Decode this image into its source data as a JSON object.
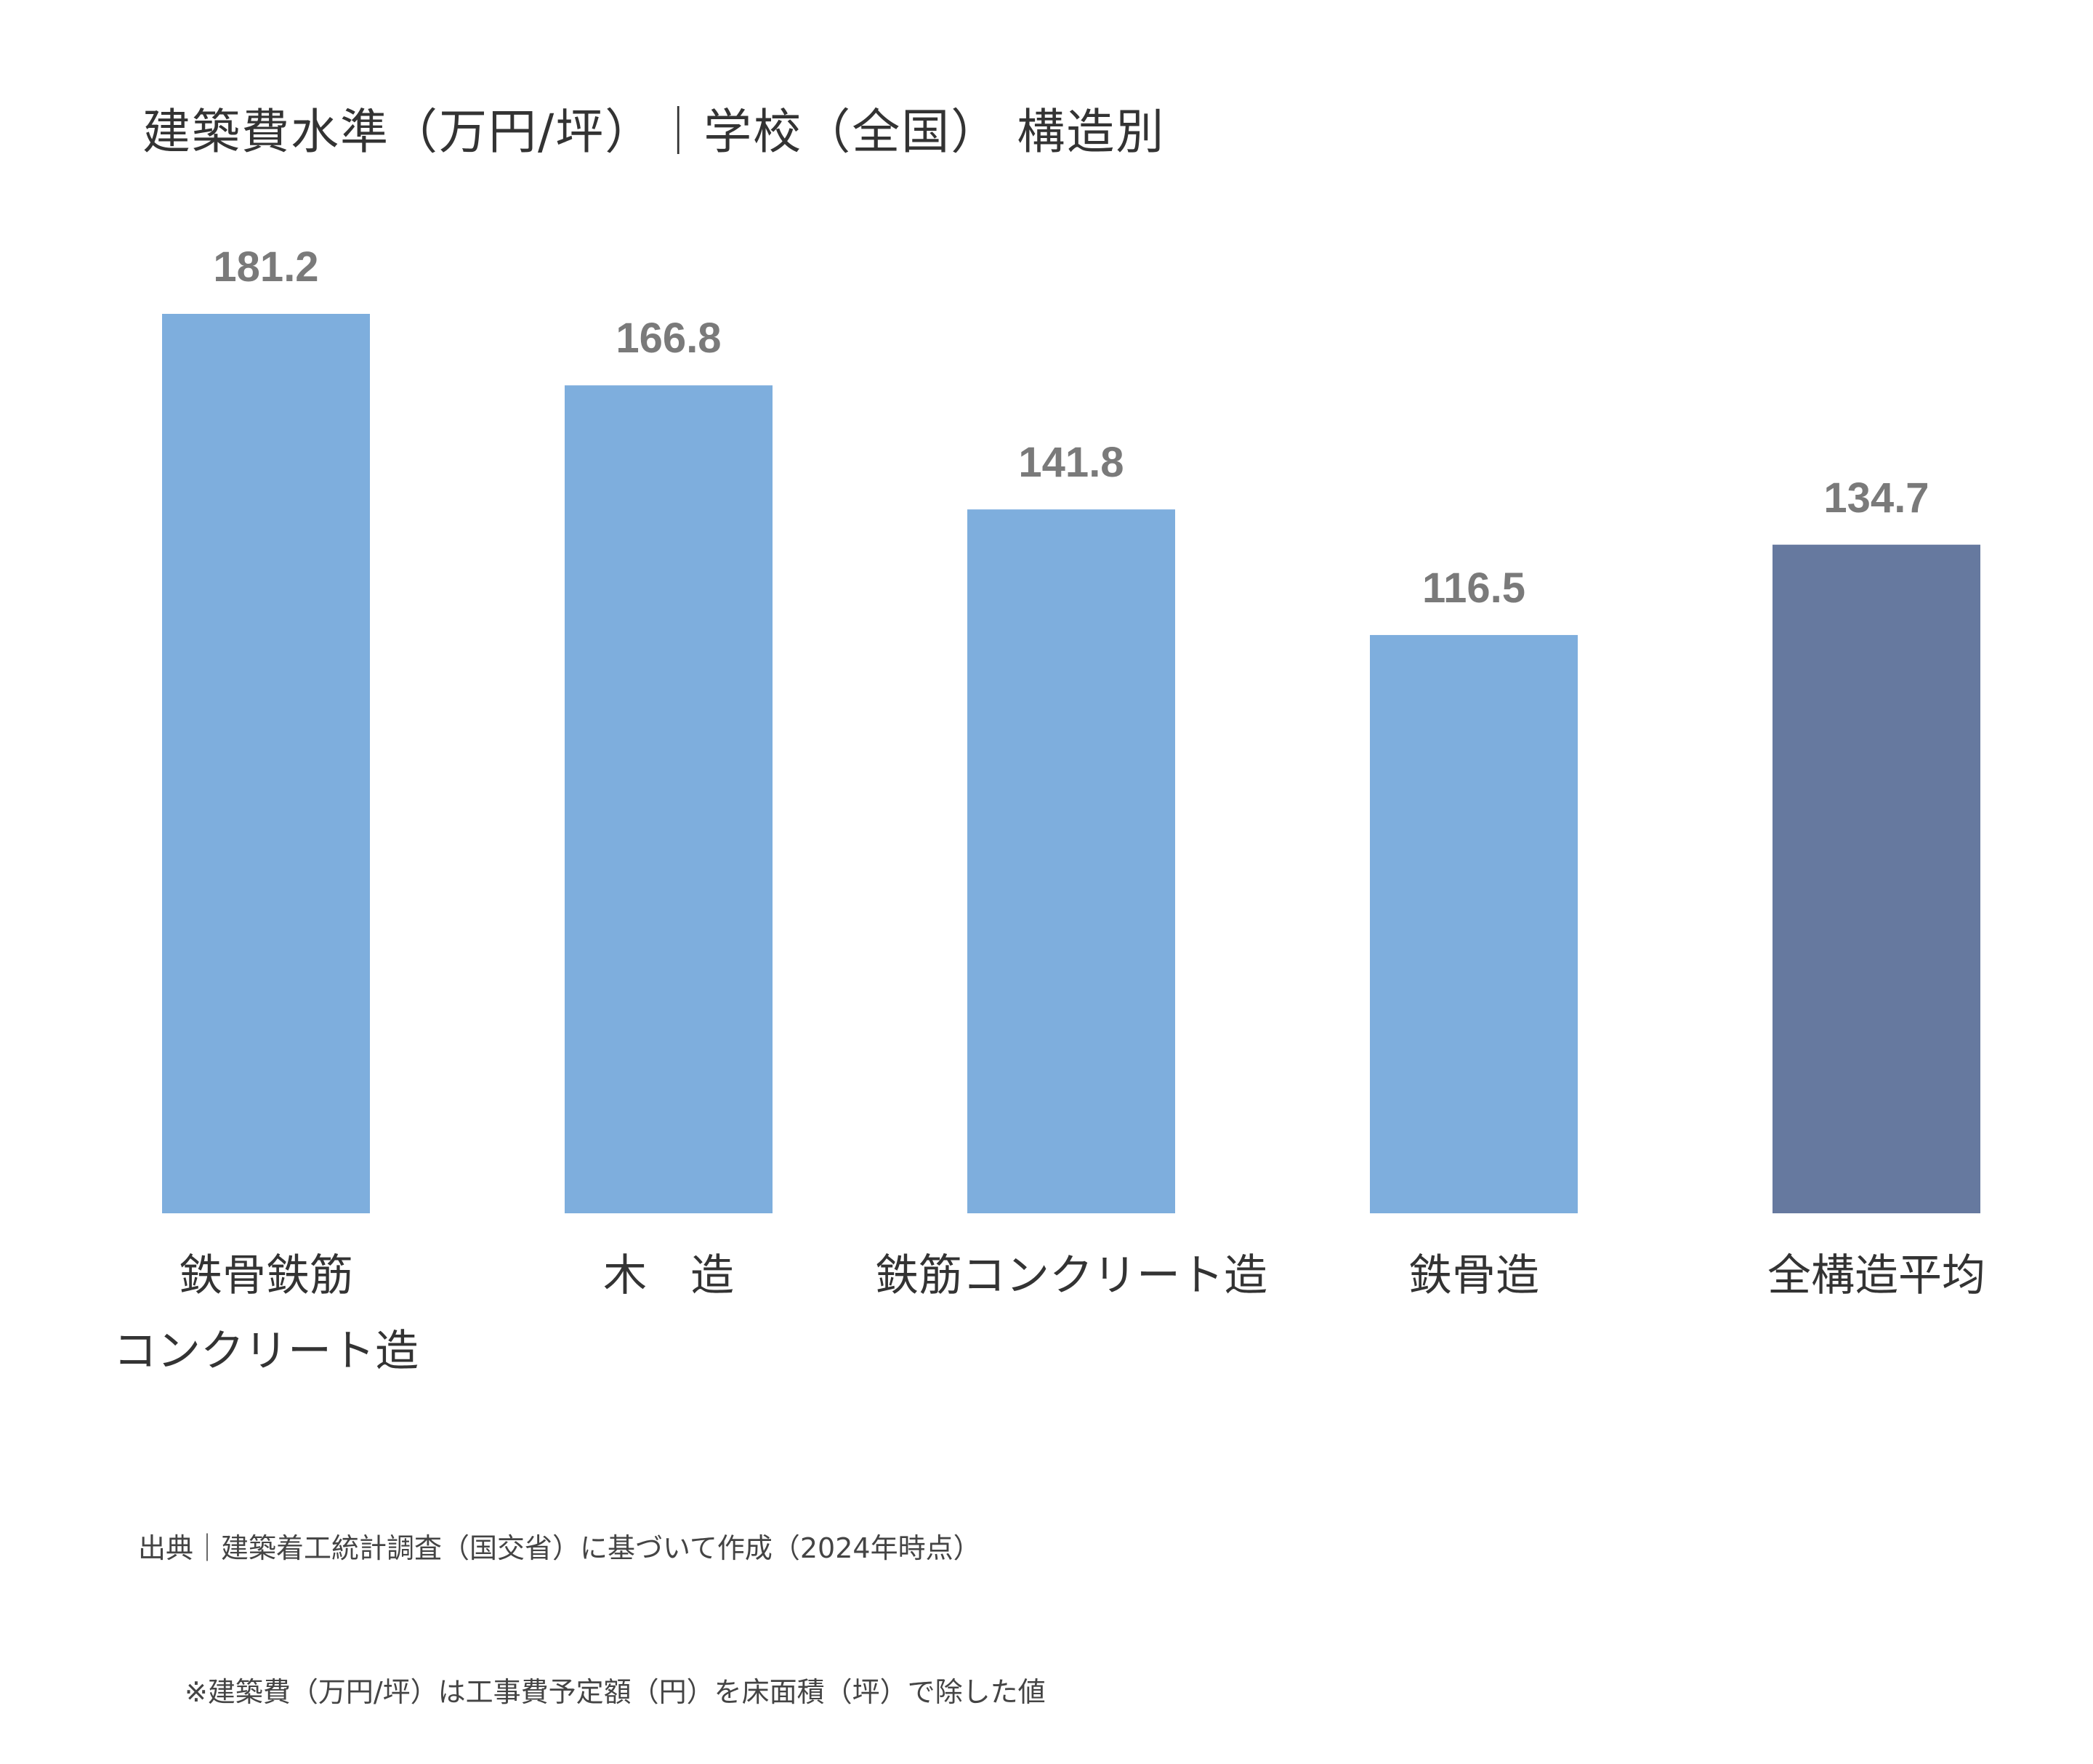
{
  "chart_data": {
    "type": "bar",
    "title": "建築費水準（万円/坪）｜学校（全国） 構造別",
    "categories": [
      "鉄骨鉄筋\nコンクリート造",
      "木　造",
      "鉄筋コンクリート造",
      "鉄骨造",
      "全構造平均"
    ],
    "values": [
      181.2,
      166.8,
      141.8,
      116.5,
      134.7
    ],
    "value_labels": [
      "181.2",
      "166.8",
      "141.8",
      "116.5",
      "134.7"
    ],
    "colors": [
      "#7eaedd",
      "#7eaedd",
      "#7eaedd",
      "#7eaedd",
      "#66799f"
    ],
    "ylim": [
      0,
      181.2
    ],
    "xlabel": "",
    "ylabel": "",
    "grid": false,
    "legend": "none"
  },
  "notes": {
    "source": "出典｜建築着工統計調査（国交省）に基づいて作成（2024年時点）",
    "footnote": "※建築費（万円/坪）は工事費予定額（円）を床面積（坪）で除した値"
  }
}
